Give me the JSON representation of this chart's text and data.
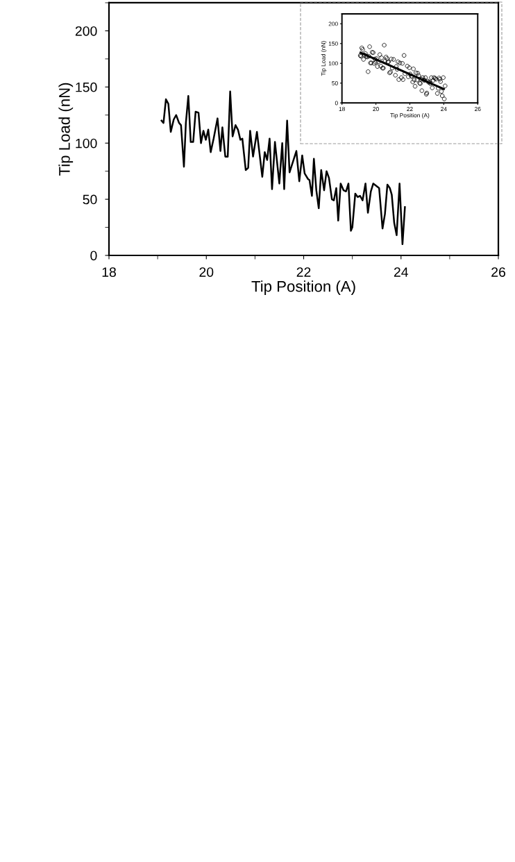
{
  "chart_data": [
    {
      "type": "line",
      "xlabel": "Tip Position (A)",
      "ylabel": "Tip Load (nN)",
      "xlim": [
        18,
        26
      ],
      "xticks": [
        18,
        20,
        22,
        24,
        26
      ],
      "ylim": [
        0,
        225
      ],
      "yticks": [
        0,
        50,
        100,
        150,
        200
      ],
      "grid": false,
      "legend": false,
      "marker": "none",
      "line_style": "solid",
      "series": [
        {
          "color": "#000000",
          "x": [
            19.08,
            19.12,
            19.17,
            19.22,
            19.27,
            19.33,
            19.38,
            19.44,
            19.48,
            19.54,
            19.58,
            19.63,
            19.68,
            19.73,
            19.78,
            19.84,
            19.89,
            19.94,
            19.99,
            20.04,
            20.09,
            20.15,
            20.23,
            20.29,
            20.33,
            20.39,
            20.44,
            20.49,
            20.54,
            20.6,
            20.65,
            20.7,
            20.74,
            20.81,
            20.86,
            20.9,
            20.96,
            21.04,
            21.15,
            21.2,
            21.25,
            21.3,
            21.35,
            21.41,
            21.5,
            21.56,
            21.6,
            21.66,
            21.71,
            21.85,
            21.91,
            21.97,
            22.02,
            22.09,
            22.12,
            22.17,
            22.21,
            22.26,
            22.31,
            22.36,
            22.42,
            22.47,
            22.52,
            22.58,
            22.62,
            22.67,
            22.71,
            22.76,
            22.82,
            22.87,
            22.92,
            22.97,
            23.0,
            23.06,
            23.11,
            23.16,
            23.21,
            23.27,
            23.32,
            23.38,
            23.43,
            23.49,
            23.55,
            23.62,
            23.67,
            23.72,
            23.77,
            23.81,
            23.86,
            23.91,
            23.97,
            24.03,
            24.08
          ],
          "values": [
            120,
            118,
            139,
            135,
            110,
            121,
            125,
            118,
            116,
            79,
            118,
            142,
            101,
            101,
            128,
            127,
            100,
            111,
            103,
            112,
            92,
            104,
            122,
            93,
            114,
            88,
            88,
            146,
            106,
            116,
            112,
            103,
            104,
            76,
            78,
            111,
            88,
            110,
            70,
            92,
            85,
            104,
            59,
            101,
            64,
            100,
            59,
            120,
            74,
            93,
            66,
            89,
            73,
            68,
            67,
            53,
            86,
            58,
            42,
            76,
            58,
            75,
            69,
            50,
            49,
            60,
            31,
            64,
            58,
            57,
            64,
            22,
            25,
            55,
            52,
            53,
            49,
            64,
            38,
            57,
            64,
            62,
            60,
            24,
            37,
            63,
            60,
            54,
            29,
            18,
            64,
            10,
            43
          ]
        }
      ]
    },
    {
      "type": "scatter",
      "xlabel": "Tip Position (A)",
      "ylabel": "Tip Load (nN)",
      "xlim": [
        18,
        26
      ],
      "xticks": [
        18,
        20,
        22,
        24,
        26
      ],
      "ylim": [
        0,
        225
      ],
      "yticks": [
        0,
        50,
        100,
        150,
        200
      ],
      "grid": false,
      "legend": false,
      "series": [
        {
          "type": "scatter",
          "marker": "circle",
          "color": "#000000",
          "x": [
            19.08,
            19.12,
            19.17,
            19.22,
            19.27,
            19.33,
            19.38,
            19.44,
            19.48,
            19.54,
            19.58,
            19.63,
            19.68,
            19.73,
            19.78,
            19.84,
            19.89,
            19.94,
            19.99,
            20.04,
            20.09,
            20.15,
            20.23,
            20.29,
            20.33,
            20.39,
            20.44,
            20.49,
            20.54,
            20.6,
            20.65,
            20.7,
            20.74,
            20.81,
            20.86,
            20.9,
            20.96,
            21.04,
            21.15,
            21.2,
            21.25,
            21.3,
            21.35,
            21.41,
            21.5,
            21.56,
            21.6,
            21.66,
            21.71,
            21.85,
            21.91,
            21.97,
            22.02,
            22.09,
            22.12,
            22.17,
            22.21,
            22.26,
            22.31,
            22.36,
            22.42,
            22.47,
            22.52,
            22.58,
            22.62,
            22.67,
            22.71,
            22.76,
            22.82,
            22.87,
            22.92,
            22.97,
            23.0,
            23.06,
            23.11,
            23.16,
            23.21,
            23.27,
            23.32,
            23.38,
            23.43,
            23.49,
            23.55,
            23.62,
            23.67,
            23.72,
            23.77,
            23.81,
            23.86,
            23.91,
            23.97,
            24.03,
            24.08
          ],
          "values": [
            120,
            118,
            139,
            135,
            110,
            121,
            125,
            118,
            116,
            79,
            118,
            142,
            101,
            101,
            128,
            127,
            100,
            111,
            103,
            112,
            92,
            104,
            122,
            93,
            114,
            88,
            88,
            146,
            106,
            116,
            112,
            103,
            104,
            76,
            78,
            111,
            88,
            110,
            70,
            92,
            85,
            104,
            59,
            101,
            64,
            100,
            59,
            120,
            74,
            93,
            66,
            89,
            73,
            68,
            67,
            53,
            86,
            58,
            42,
            76,
            58,
            75,
            69,
            50,
            49,
            60,
            31,
            64,
            58,
            57,
            64,
            22,
            25,
            55,
            52,
            53,
            49,
            64,
            38,
            57,
            64,
            62,
            60,
            24,
            37,
            63,
            60,
            54,
            29,
            18,
            64,
            10,
            43
          ]
        },
        {
          "type": "line",
          "marker": "none",
          "line_style": "solid",
          "color": "#000000",
          "x": [
            19.1,
            24.0
          ],
          "values": [
            127,
            35
          ]
        }
      ]
    }
  ]
}
